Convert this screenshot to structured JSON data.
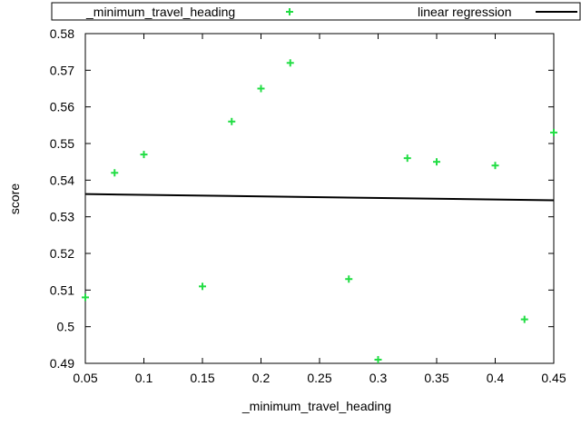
{
  "chart_data": {
    "type": "scatter",
    "xlabel": "_minimum_travel_heading",
    "ylabel": "score",
    "xlim": [
      0.05,
      0.45
    ],
    "ylim": [
      0.49,
      0.58
    ],
    "x_ticks": [
      "0.05",
      "0.1",
      "0.15",
      "0.2",
      "0.25",
      "0.3",
      "0.35",
      "0.4",
      "0.45"
    ],
    "y_ticks": [
      "0.49",
      "0.5",
      "0.51",
      "0.52",
      "0.53",
      "0.54",
      "0.55",
      "0.56",
      "0.57",
      "0.58"
    ],
    "grid": false,
    "legend_position": "top",
    "series": [
      {
        "name": "_minimum_travel_heading",
        "kind": "points",
        "marker": "plus",
        "color": "#22dd44",
        "x": [
          0.05,
          0.075,
          0.1,
          0.15,
          0.175,
          0.2,
          0.225,
          0.275,
          0.3,
          0.325,
          0.35,
          0.4,
          0.425,
          0.45
        ],
        "y": [
          0.508,
          0.542,
          0.547,
          0.511,
          0.556,
          0.565,
          0.572,
          0.513,
          0.491,
          0.546,
          0.545,
          0.544,
          0.502,
          0.553
        ]
      },
      {
        "name": "linear regression",
        "kind": "line",
        "color": "#000000",
        "x": [
          0.05,
          0.45
        ],
        "y": [
          0.5362,
          0.5345
        ]
      }
    ]
  }
}
